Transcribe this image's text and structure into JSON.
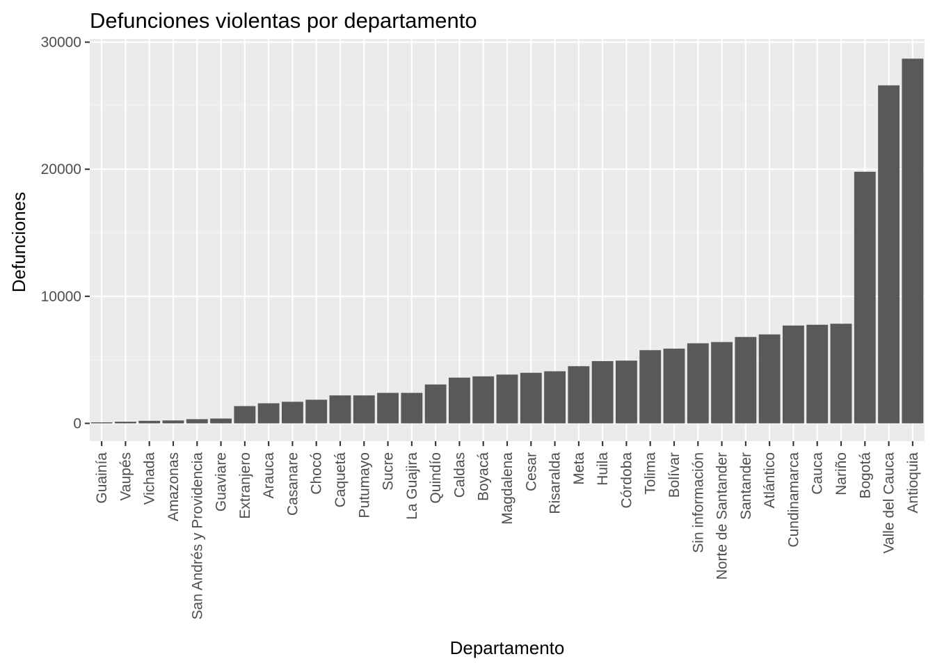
{
  "chart_data": {
    "type": "bar",
    "title": "Defunciones violentas por departamento",
    "xlabel": "Departamento",
    "ylabel": "Defunciones",
    "ylim": [
      -1400,
      30250
    ],
    "yticks": [
      0,
      10000,
      20000,
      30000
    ],
    "ytick_labels": [
      "0",
      "10000",
      "20000",
      "30000"
    ],
    "grid": true,
    "legend": "none",
    "categories": [
      "Guainía",
      "Vaupés",
      "Vichada",
      "Amazonas",
      "San Andrés y Providencia",
      "Guaviare",
      "Extranjero",
      "Arauca",
      "Casanare",
      "Chocó",
      "Caquetá",
      "Putumayo",
      "Sucre",
      "La Guajira",
      "Quindío",
      "Caldas",
      "Boyacá",
      "Magdalena",
      "Cesar",
      "Risaralda",
      "Meta",
      "Huila",
      "Córdoba",
      "Tolima",
      "Bolívar",
      "Sin información",
      "Norte de Santander",
      "Santander",
      "Atlántico",
      "Cundinamarca",
      "Cauca",
      "Nariño",
      "Bogotá",
      "Valle del Cauca",
      "Antioquia"
    ],
    "values": [
      80,
      130,
      200,
      230,
      330,
      380,
      1360,
      1580,
      1700,
      1860,
      2200,
      2200,
      2400,
      2400,
      3060,
      3600,
      3700,
      3840,
      3980,
      4100,
      4500,
      4900,
      4940,
      5760,
      5880,
      6300,
      6400,
      6800,
      7000,
      7700,
      7760,
      7840,
      19800,
      26600,
      28700
    ],
    "colors": {
      "bar": "#595959",
      "panel": "#ebebeb",
      "grid_major": "#ffffff",
      "grid_minor": "#f5f5f5",
      "tick": "#333333"
    }
  }
}
